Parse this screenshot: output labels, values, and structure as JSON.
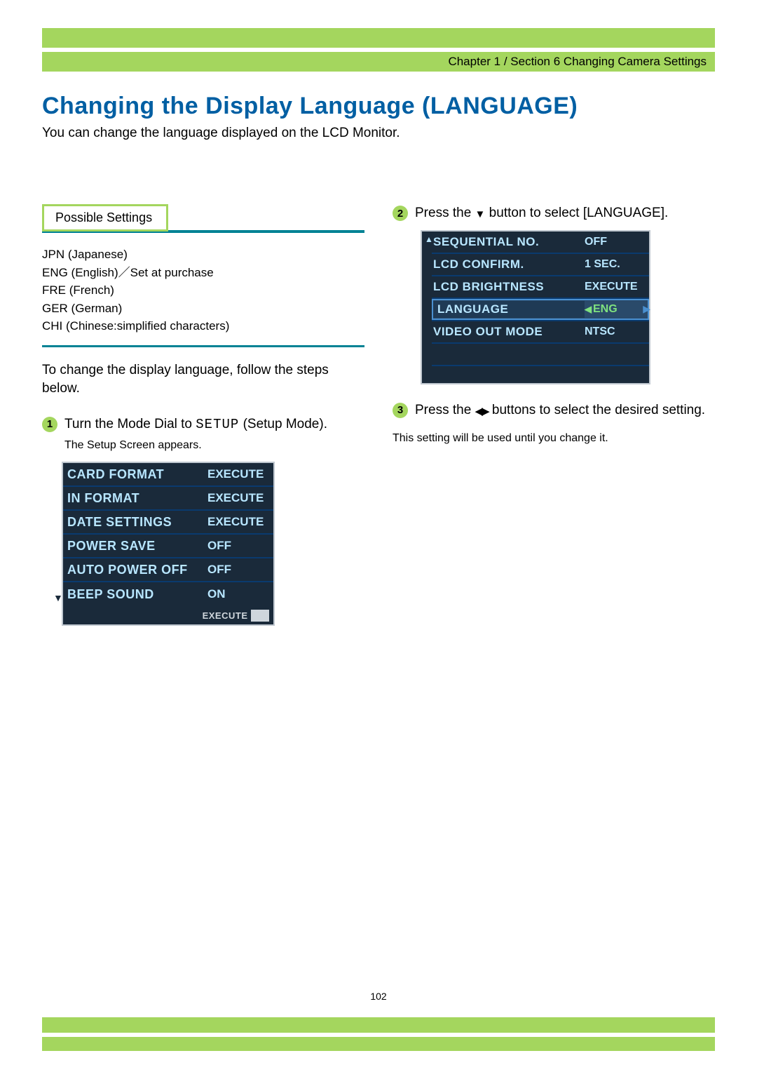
{
  "colors": {
    "accent_green": "#a4d65e",
    "title_blue": "#005fa3",
    "rule_teal": "#008294",
    "lcd_bg": "#1a2a3a",
    "lcd_text": "#b8e6ff",
    "lcd_highlight_text": "#7fe27f"
  },
  "breadcrumb": "Chapter  1 / Section 6  Changing Camera Settings",
  "title": "Changing the Display Language (LANGUAGE)",
  "intro": "You can change the language displayed on the LCD Monitor.",
  "possible_settings_tab": "Possible Settings",
  "settings_list": [
    "JPN (Japanese)",
    "ENG (English)／Set at purchase",
    "FRE (French)",
    "GER (German)",
    "CHI (Chinese:simplified characters)"
  ],
  "instr": "To change the display language, follow the steps below.",
  "step1_pre": "Turn the Mode Dial to ",
  "step1_setup": "SETUP",
  "step1_post": " (Setup Mode).",
  "step1_sub": "The Setup Screen appears.",
  "lcd1": {
    "rows": [
      {
        "label": "CARD FORMAT",
        "value": "EXECUTE"
      },
      {
        "label": "IN FORMAT",
        "value": "EXECUTE"
      },
      {
        "label": "DATE SETTINGS",
        "value": "EXECUTE"
      },
      {
        "label": "POWER SAVE",
        "value": "OFF"
      },
      {
        "label": "AUTO POWER OFF",
        "value": "OFF"
      },
      {
        "label": "BEEP SOUND",
        "value": "ON"
      }
    ],
    "footer_text": "EXECUTE",
    "footer_ok": "OK"
  },
  "step2_pre": "Press the ",
  "step2_post": " button to select [LANGUAGE].",
  "lcd2": {
    "rows": [
      {
        "label": "SEQUENTIAL NO.",
        "value": "OFF",
        "hl": false
      },
      {
        "label": "LCD CONFIRM.",
        "value": "1 SEC.",
        "hl": false
      },
      {
        "label": "LCD BRIGHTNESS",
        "value": "EXECUTE",
        "hl": false
      },
      {
        "label": "LANGUAGE",
        "value": "ENG",
        "hl": true
      },
      {
        "label": "VIDEO OUT MODE",
        "value": "NTSC",
        "hl": false
      }
    ]
  },
  "step3_pre": "Press the ",
  "step3_post": " buttons to select the desired setting.",
  "note": "This setting will be used until you change it.",
  "page_number": "102"
}
